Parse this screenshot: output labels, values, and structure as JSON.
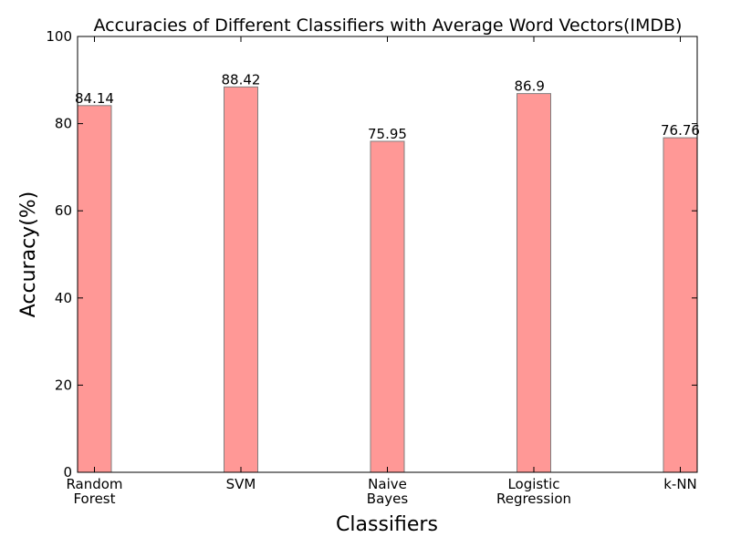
{
  "chart_data": {
    "type": "bar",
    "title": "Accuracies of Different Classifiers with Average Word Vectors(IMDB)",
    "xlabel": "Classifiers",
    "ylabel": "Accuracy(%)",
    "categories": [
      [
        "Random",
        "Forest"
      ],
      [
        "SVM"
      ],
      [
        "Naive",
        "Bayes"
      ],
      [
        "Logistic",
        "Regression"
      ],
      [
        "k-NN"
      ]
    ],
    "values": [
      84.14,
      88.42,
      75.95,
      86.9,
      76.76
    ],
    "value_labels": [
      "84.14",
      "88.42",
      "75.95",
      "86.9",
      "76.76"
    ],
    "ylim": [
      0,
      100
    ],
    "yticks": [
      0,
      20,
      40,
      60,
      80,
      100
    ],
    "grid": false,
    "colors": {
      "bar_fill": "#ff9896",
      "bar_edge": "#7f7f7f",
      "axes": "#000000"
    }
  }
}
